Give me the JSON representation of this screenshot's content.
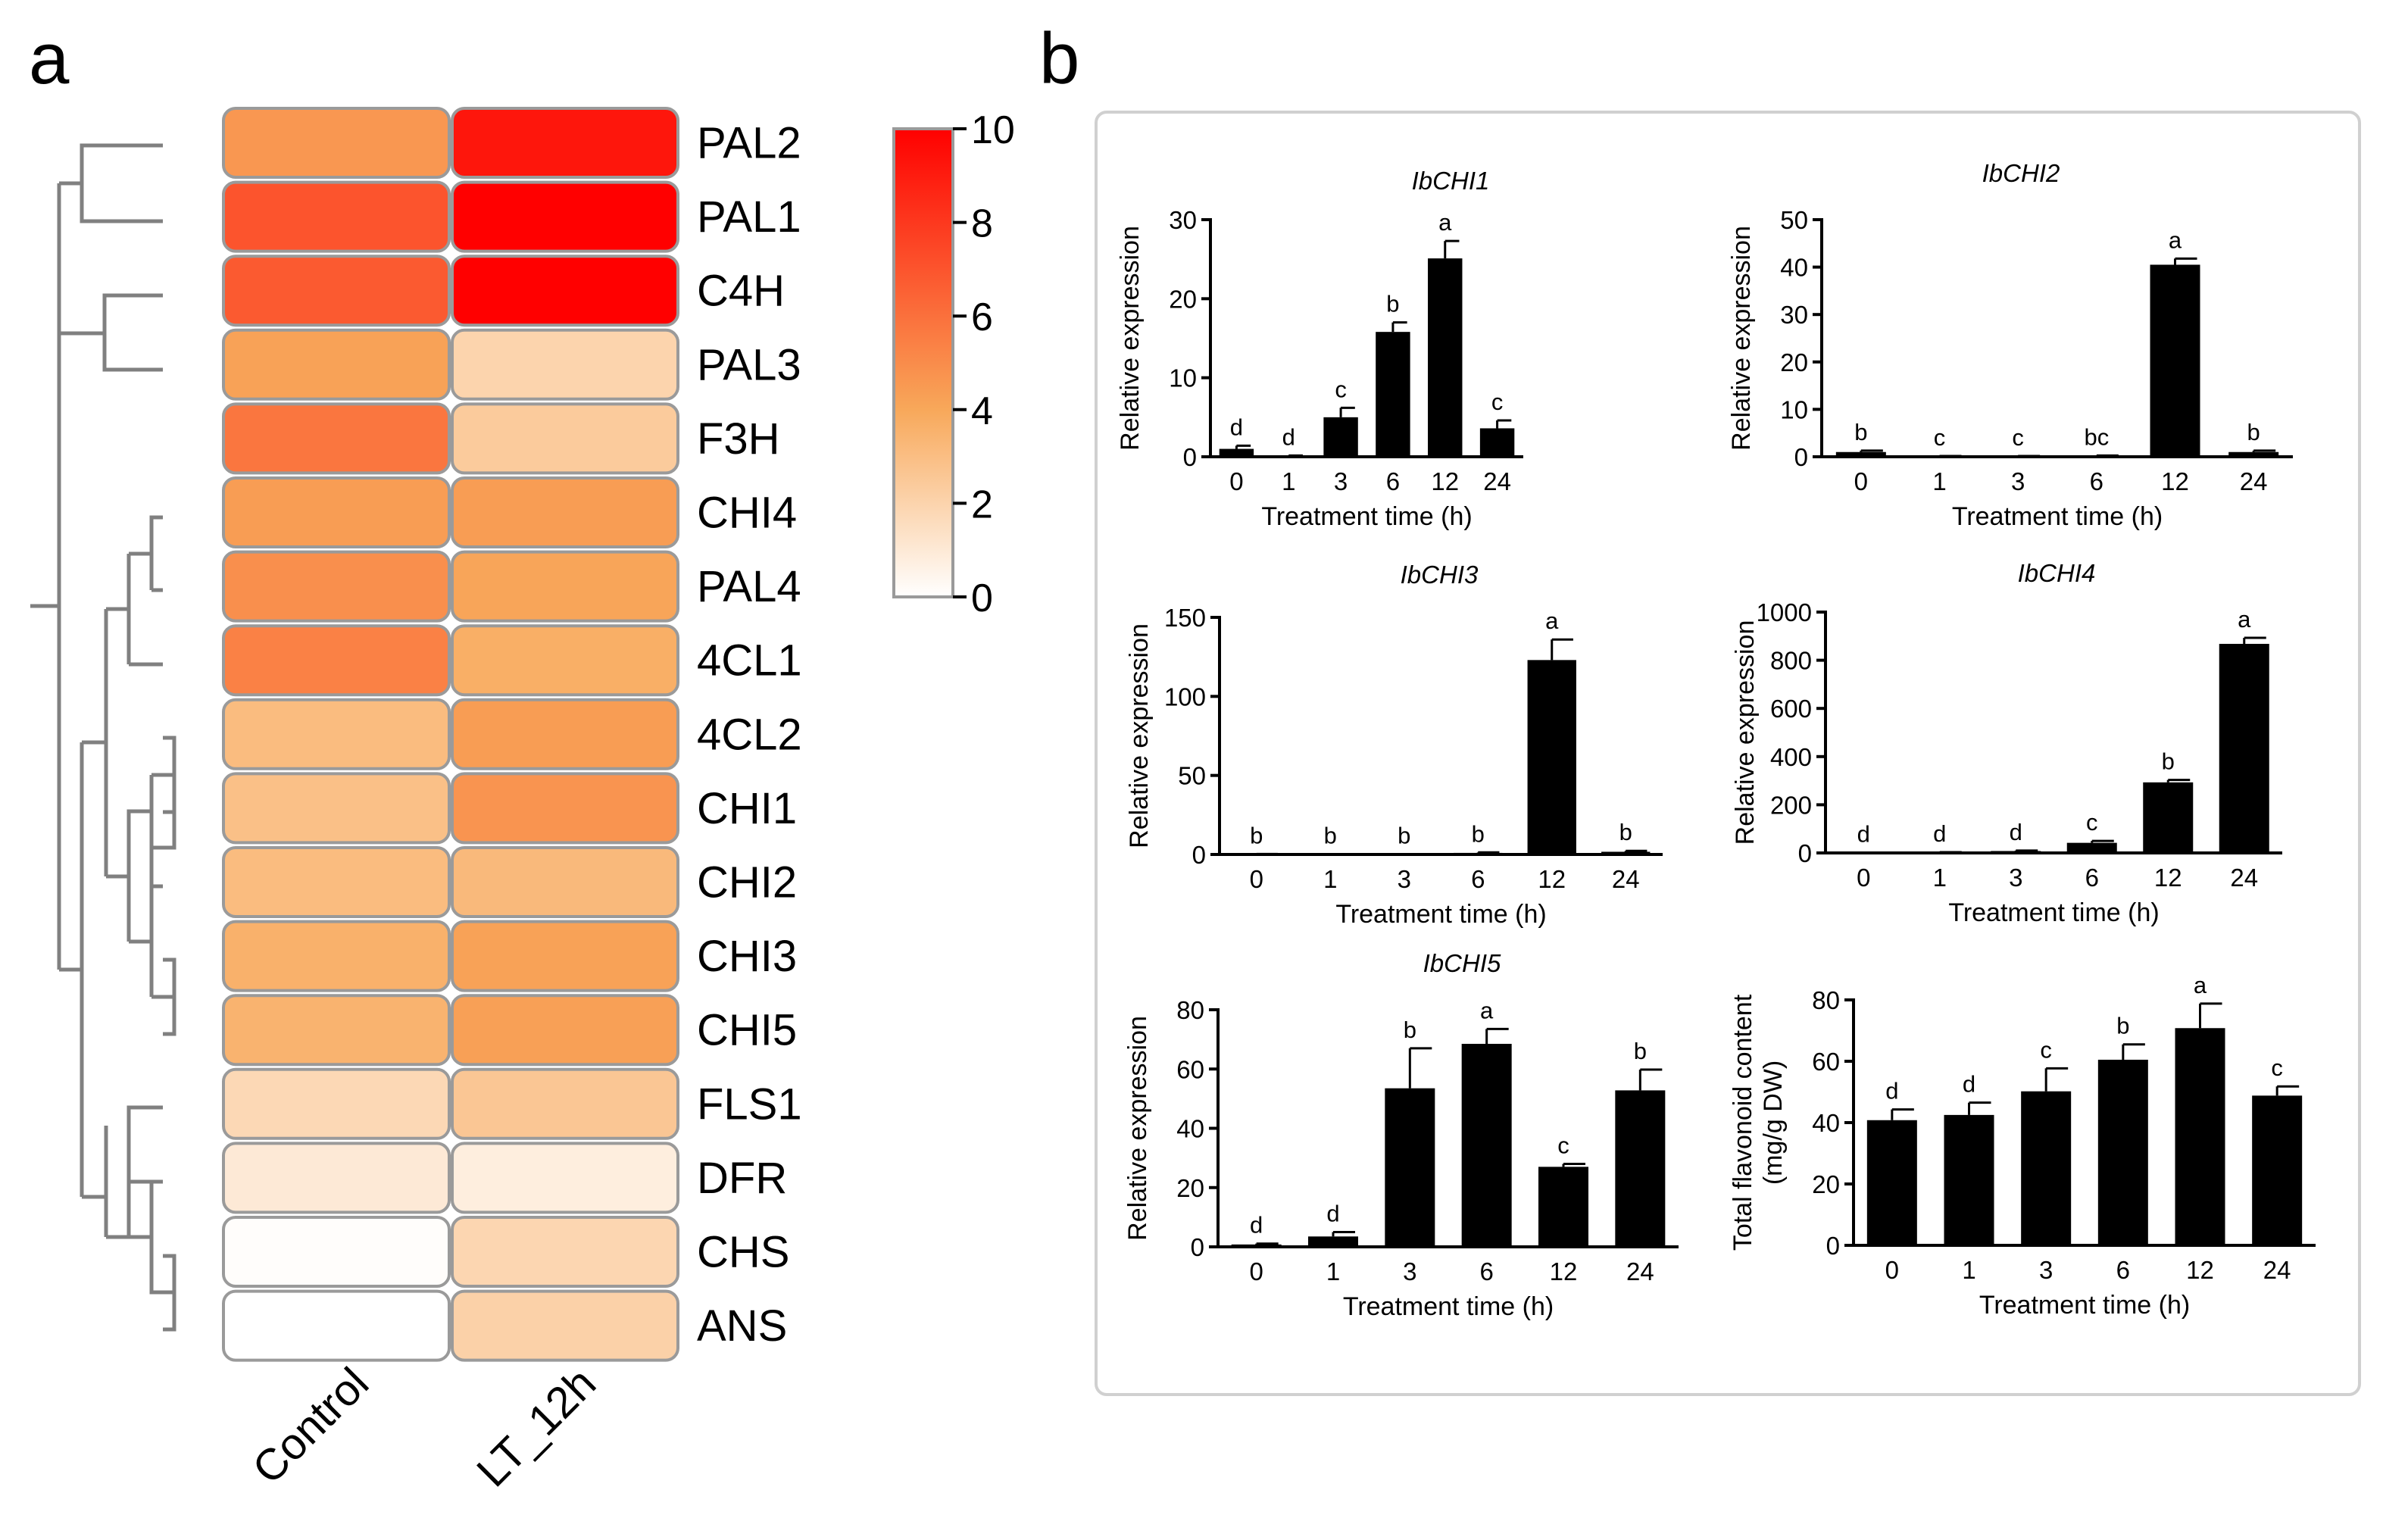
{
  "panel_labels": {
    "a": "a",
    "b": "b"
  },
  "heatmap": {
    "columns": [
      "Control",
      "LT_12h"
    ],
    "rows": [
      "PAL2",
      "PAL1",
      "C4H",
      "PAL3",
      "F3H",
      "CHI4",
      "PAL4",
      "4CL1",
      "4CL2",
      "CHI1",
      "CHI2",
      "CHI3",
      "CHI5",
      "FLS1",
      "DFR",
      "CHS",
      "ANS"
    ],
    "values": [
      [
        4.6,
        9.2
      ],
      [
        7.0,
        10.0
      ],
      [
        6.8,
        10.0
      ],
      [
        4.2,
        2.0
      ],
      [
        5.8,
        2.4
      ],
      [
        4.4,
        4.4
      ],
      [
        4.9,
        4.1
      ],
      [
        5.4,
        3.7
      ],
      [
        3.1,
        4.4
      ],
      [
        2.9,
        4.7
      ],
      [
        3.1,
        3.2
      ],
      [
        3.6,
        4.2
      ],
      [
        3.5,
        4.3
      ],
      [
        1.8,
        2.6
      ],
      [
        1.0,
        0.8
      ],
      [
        0.1,
        1.9
      ],
      [
        0.0,
        2.1
      ]
    ],
    "colorbar": {
      "min": 0,
      "max": 10,
      "ticks": [
        "10",
        "8",
        "6",
        "4",
        "2",
        "0"
      ],
      "colors": {
        "low": "#ffffff",
        "mid": "#f8a85a",
        "high": "#ff0000"
      }
    }
  },
  "chart_data": [
    {
      "type": "bar",
      "title": "IbCHI1",
      "categories": [
        "0",
        "1",
        "3",
        "6",
        "12",
        "24"
      ],
      "values": [
        1.0,
        0.1,
        5.0,
        15.8,
        25.1,
        3.6
      ],
      "errors": [
        0.4,
        0.05,
        1.2,
        1.2,
        2.2,
        1.0
      ],
      "labels": [
        "d",
        "d",
        "c",
        "b",
        "a",
        "c"
      ],
      "ylim": [
        0,
        30
      ],
      "yticks": [
        "0",
        "10",
        "20",
        "30"
      ],
      "xlabel": "Treatment time (h)",
      "ylabel": "Relative expression"
    },
    {
      "type": "bar",
      "title": "IbCHI2",
      "categories": [
        "0",
        "1",
        "3",
        "6",
        "12",
        "24"
      ],
      "values": [
        1.0,
        0.1,
        0.1,
        0.2,
        40.5,
        1.0
      ],
      "errors": [
        0.3,
        0.05,
        0.05,
        0.05,
        1.3,
        0.3
      ],
      "labels": [
        "b",
        "c",
        "c",
        "bc",
        "a",
        "b"
      ],
      "ylim": [
        0,
        50
      ],
      "yticks": [
        "0",
        "10",
        "20",
        "30",
        "40",
        "50"
      ],
      "xlabel": "Treatment time (h)",
      "ylabel": "Relative expression"
    },
    {
      "type": "bar",
      "title": "IbCHI3",
      "categories": [
        "0",
        "1",
        "3",
        "6",
        "12",
        "24"
      ],
      "values": [
        0.2,
        0.1,
        0.1,
        1.0,
        123,
        1.7
      ],
      "errors": [
        0.1,
        0.05,
        0.05,
        0.3,
        13,
        0.6
      ],
      "labels": [
        "b",
        "b",
        "b",
        "b",
        "a",
        "b"
      ],
      "ylim": [
        0,
        150
      ],
      "yticks": [
        "0",
        "50",
        "100",
        "150"
      ],
      "xlabel": "Treatment time (h)",
      "ylabel": "Relative expression"
    },
    {
      "type": "bar",
      "title": "IbCHI4",
      "categories": [
        "0",
        "1",
        "3",
        "6",
        "12",
        "24"
      ],
      "values": [
        1,
        2,
        8,
        42,
        293,
        868
      ],
      "errors": [
        0.5,
        1,
        2,
        8,
        10,
        25
      ],
      "labels": [
        "d",
        "d",
        "d",
        "c",
        "b",
        "a"
      ],
      "ylim": [
        0,
        1000
      ],
      "yticks": [
        "0",
        "200",
        "400",
        "600",
        "800",
        "1000"
      ],
      "xlabel": "Treatment time (h)",
      "ylabel": "Relative expression"
    },
    {
      "type": "bar",
      "title": "IbCHI5",
      "categories": [
        "0",
        "1",
        "3",
        "6",
        "12",
        "24"
      ],
      "values": [
        0.8,
        3.5,
        53.5,
        68.5,
        27.0,
        52.8
      ],
      "errors": [
        0.3,
        1.5,
        13.5,
        5.0,
        1.0,
        7.0
      ],
      "labels": [
        "d",
        "d",
        "b",
        "a",
        "c",
        "b"
      ],
      "ylim": [
        0,
        80
      ],
      "yticks": [
        "0",
        "20",
        "40",
        "60",
        "80"
      ],
      "xlabel": "Treatment time (h)",
      "ylabel": "Relative expression"
    },
    {
      "type": "bar",
      "title": "",
      "categories": [
        "0",
        "1",
        "3",
        "6",
        "12",
        "24"
      ],
      "values": [
        40.8,
        42.5,
        50.2,
        60.5,
        70.8,
        48.8
      ],
      "errors": [
        3.5,
        4.0,
        7.5,
        5.0,
        8.0,
        3.0
      ],
      "labels": [
        "d",
        "d",
        "c",
        "b",
        "a",
        "c"
      ],
      "ylim": [
        0,
        80
      ],
      "yticks": [
        "0",
        "20",
        "40",
        "60",
        "80"
      ],
      "xlabel": "Treatment time (h)",
      "ylabel": "Total flavonoid content",
      "ylabel2": "(mg/g DW)"
    }
  ]
}
